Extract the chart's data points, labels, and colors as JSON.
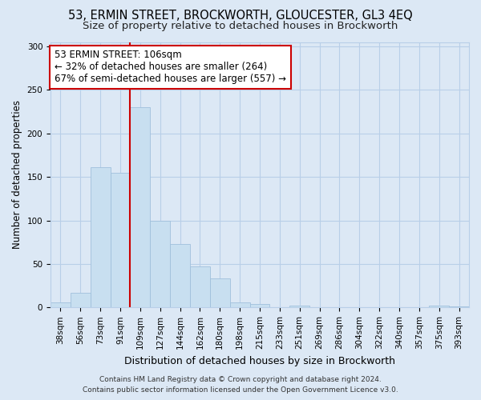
{
  "title1": "53, ERMIN STREET, BROCKWORTH, GLOUCESTER, GL3 4EQ",
  "title2": "Size of property relative to detached houses in Brockworth",
  "xlabel": "Distribution of detached houses by size in Brockworth",
  "ylabel": "Number of detached properties",
  "bar_labels": [
    "38sqm",
    "56sqm",
    "73sqm",
    "91sqm",
    "109sqm",
    "127sqm",
    "144sqm",
    "162sqm",
    "180sqm",
    "198sqm",
    "215sqm",
    "233sqm",
    "251sqm",
    "269sqm",
    "286sqm",
    "304sqm",
    "322sqm",
    "340sqm",
    "357sqm",
    "375sqm",
    "393sqm"
  ],
  "bar_values": [
    6,
    17,
    161,
    155,
    230,
    100,
    73,
    47,
    33,
    6,
    4,
    0,
    2,
    0,
    0,
    0,
    0,
    0,
    0,
    2,
    1
  ],
  "bar_fill_color": "#c8dff0",
  "bar_edge_color": "#a0c0dc",
  "vline_color": "#cc0000",
  "vline_x_idx": 4,
  "annotation_text_line1": "53 ERMIN STREET: 106sqm",
  "annotation_text_line2": "← 32% of detached houses are smaller (264)",
  "annotation_text_line3": "67% of semi-detached houses are larger (557) →",
  "annotation_box_color": "#ffffff",
  "annotation_box_edge": "#cc0000",
  "ylim": [
    0,
    305
  ],
  "yticks": [
    0,
    50,
    100,
    150,
    200,
    250,
    300
  ],
  "footer_line1": "Contains HM Land Registry data © Crown copyright and database right 2024.",
  "footer_line2": "Contains public sector information licensed under the Open Government Licence v3.0.",
  "bg_color": "#dce8f5",
  "plot_bg_color": "#dce8f5",
  "grid_color": "#b8cfe8",
  "title1_fontsize": 10.5,
  "title2_fontsize": 9.5,
  "xlabel_fontsize": 9,
  "ylabel_fontsize": 8.5,
  "tick_fontsize": 7.5,
  "footer_fontsize": 6.5,
  "annotation_fontsize": 8.5
}
